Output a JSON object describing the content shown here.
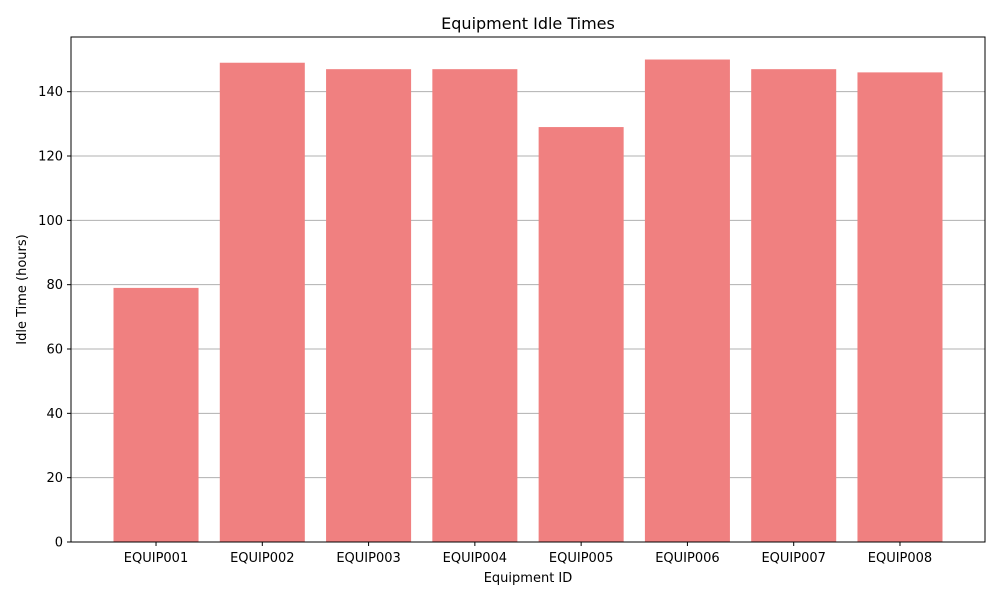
{
  "chart_data": {
    "type": "bar",
    "title": "Equipment Idle Times",
    "xlabel": "Equipment ID",
    "ylabel": "Idle Time (hours)",
    "categories": [
      "EQUIP001",
      "EQUIP002",
      "EQUIP003",
      "EQUIP004",
      "EQUIP005",
      "EQUIP006",
      "EQUIP007",
      "EQUIP008"
    ],
    "values": [
      79,
      149,
      147,
      147,
      129,
      150,
      147,
      146
    ],
    "ylim": [
      0,
      157
    ],
    "yticks": [
      0,
      20,
      40,
      60,
      80,
      100,
      120,
      140
    ],
    "grid": {
      "y": true,
      "x": false
    },
    "bar_color": "#f08080",
    "grid_color": "#b0b0b0",
    "legend": "none"
  }
}
